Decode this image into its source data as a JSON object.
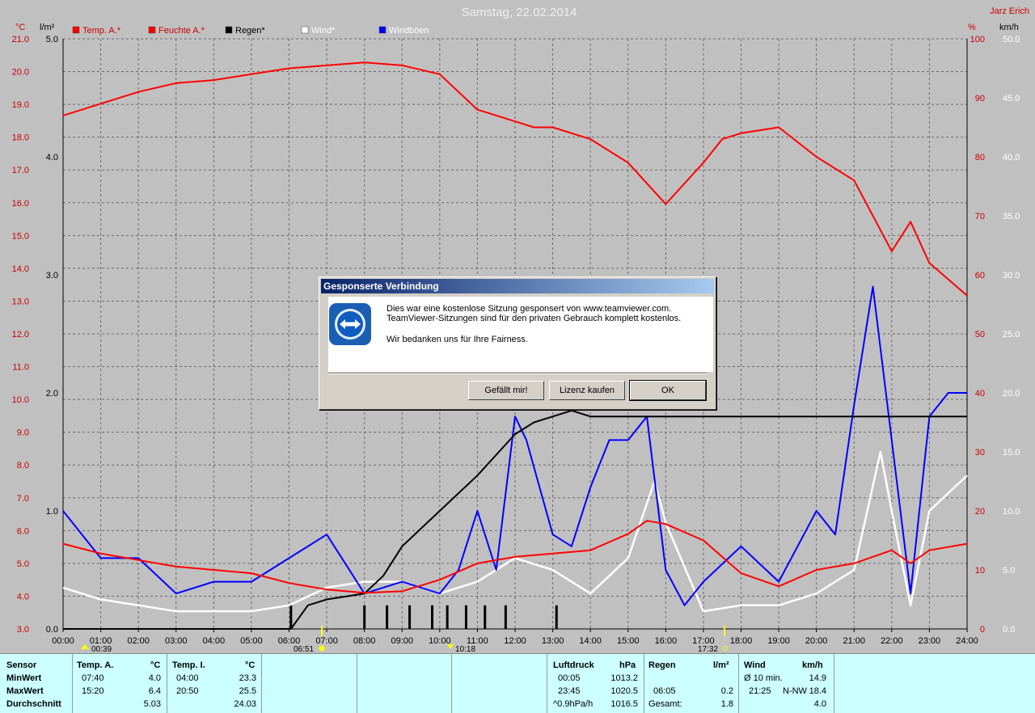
{
  "title": "Samstag, 22.02.2014",
  "author": "Jarz Erich",
  "axis_units": {
    "temp": "°C",
    "rain": "l/m²",
    "percent": "%",
    "wind": "km/h"
  },
  "legend": [
    {
      "label": "Temp. A.*",
      "color": "#ff0000"
    },
    {
      "label": "Feuchte A.*",
      "color": "#ff0000"
    },
    {
      "label": "Regen*",
      "color": "#000000"
    },
    {
      "label": "Wind*",
      "color": "#ffffff"
    },
    {
      "label": "Windböen",
      "color": "#0000ff"
    }
  ],
  "markers": {
    "t1": "00:39",
    "sunrise": "06:51",
    "t2": "10:18",
    "sunset": "17:32"
  },
  "chart_data": {
    "type": "line",
    "x_label_ticks": [
      "00:00",
      "01:00",
      "02:00",
      "03:00",
      "04:00",
      "05:00",
      "06:00",
      "07:00",
      "08:00",
      "09:00",
      "10:00",
      "11:00",
      "12:00",
      "13:00",
      "14:00",
      "15:00",
      "16:00",
      "17:00",
      "18:00",
      "19:00",
      "20:00",
      "21:00",
      "22:00",
      "23:00",
      "24:00"
    ],
    "xlim": [
      0,
      24
    ],
    "axes": {
      "temp": {
        "unit": "°C",
        "range": [
          3.0,
          21.0
        ],
        "ticks": [
          "21.0",
          "20.0",
          "19.0",
          "18.0",
          "17.0",
          "16.0",
          "15.0",
          "14.0",
          "13.0",
          "12.0",
          "11.0",
          "10.0",
          "9.0",
          "8.0",
          "7.0",
          "6.0",
          "5.0",
          "4.0",
          "3.0"
        ]
      },
      "rain": {
        "unit": "l/m²",
        "range": [
          0.0,
          5.0
        ],
        "ticks": [
          "5.0",
          "4.0",
          "3.0",
          "2.0",
          "1.0",
          "0.0"
        ]
      },
      "humidity": {
        "unit": "%",
        "range": [
          0,
          100
        ],
        "ticks": [
          "100",
          "90",
          "80",
          "70",
          "60",
          "50",
          "40",
          "30",
          "20",
          "10",
          "0"
        ]
      },
      "wind": {
        "unit": "km/h",
        "range": [
          0.0,
          50.0
        ],
        "ticks": [
          "50.0",
          "45.0",
          "40.0",
          "35.0",
          "30.0",
          "25.0",
          "20.0",
          "15.0",
          "10.0",
          "5.0",
          "0.0"
        ]
      }
    },
    "grid": true,
    "series": [
      {
        "name": "Temp. A.*",
        "axis": "temp",
        "color": "#ff0000",
        "x": [
          0,
          1,
          2,
          3,
          4,
          5,
          6,
          7,
          8,
          9,
          10,
          11,
          12,
          13,
          14,
          15,
          15.5,
          16,
          17,
          18,
          19,
          20,
          21,
          22,
          22.5,
          23,
          24
        ],
        "y": [
          5.6,
          5.3,
          5.1,
          4.9,
          4.8,
          4.7,
          4.4,
          4.2,
          4.1,
          4.15,
          4.5,
          5.0,
          5.2,
          5.3,
          5.4,
          5.9,
          6.3,
          6.2,
          5.7,
          4.7,
          4.3,
          4.8,
          5.0,
          5.4,
          5.0,
          5.4,
          5.6
        ]
      },
      {
        "name": "Feuchte A.*",
        "axis": "humidity",
        "color": "#ff0000",
        "x": [
          0,
          1,
          2,
          3,
          4,
          5,
          6,
          7,
          8,
          9,
          10,
          11,
          12,
          12.5,
          13,
          14,
          15,
          16,
          17,
          17.5,
          18,
          19,
          20,
          21,
          22,
          22.5,
          23,
          24
        ],
        "y": [
          87,
          89,
          91,
          92.5,
          93,
          94,
          95,
          95.5,
          96,
          95.5,
          94,
          88,
          86,
          85,
          85,
          83,
          79,
          72,
          79,
          83,
          84,
          85,
          80,
          76,
          64,
          69,
          62,
          56.5
        ]
      },
      {
        "name": "Regen*",
        "axis": "rain",
        "color": "#000000",
        "x": [
          0,
          6.05,
          6.5,
          7,
          8,
          8.5,
          9,
          10,
          11,
          12,
          12.5,
          13,
          13.5,
          14,
          15,
          16,
          17,
          18,
          19,
          20,
          21,
          22,
          23,
          24
        ],
        "y": [
          0,
          0,
          0.2,
          0.25,
          0.3,
          0.45,
          0.7,
          1.0,
          1.3,
          1.65,
          1.75,
          1.8,
          1.85,
          1.8,
          1.8,
          1.8,
          1.8,
          1.8,
          1.8,
          1.8,
          1.8,
          1.8,
          1.8,
          1.8
        ]
      },
      {
        "name": "Wind*",
        "axis": "wind",
        "color": "#ffffff",
        "x": [
          0,
          1,
          2,
          3,
          4,
          5,
          6,
          7,
          8,
          9,
          10,
          11,
          12,
          13,
          14,
          15,
          15.7,
          16,
          17,
          18,
          19,
          20,
          21,
          21.7,
          22,
          22.5,
          23,
          24
        ],
        "y": [
          3.5,
          2.5,
          2,
          1.5,
          1.5,
          1.5,
          2,
          3.5,
          4,
          4,
          3,
          4,
          6,
          5,
          3,
          6,
          12.5,
          9,
          1.5,
          2,
          2,
          3,
          5,
          15,
          10,
          2,
          10,
          13
        ]
      },
      {
        "name": "Windböen",
        "axis": "wind",
        "color": "#0000ff",
        "x": [
          0,
          1,
          2,
          3,
          4,
          5,
          6,
          7,
          8,
          9,
          10,
          10.5,
          11,
          11.5,
          12,
          12.3,
          13,
          13.5,
          14,
          14.5,
          15,
          15.5,
          16,
          16.5,
          17,
          18,
          19,
          20,
          20.5,
          21,
          21.5,
          22,
          22.5,
          23,
          23.5,
          24
        ],
        "y": [
          10,
          6,
          6,
          3,
          4,
          4,
          6,
          8,
          3,
          4,
          3,
          5,
          10,
          5,
          18,
          16,
          8,
          7,
          12,
          16,
          16,
          18,
          5,
          2,
          4,
          7,
          4,
          10,
          8,
          19,
          29,
          16,
          3,
          18,
          20,
          20
        ]
      }
    ],
    "rain_bars": [
      {
        "x": 6.05,
        "v": 0.2
      },
      {
        "x": 8.0,
        "v": 0.2
      },
      {
        "x": 8.6,
        "v": 0.2
      },
      {
        "x": 9.2,
        "v": 0.2
      },
      {
        "x": 9.8,
        "v": 0.2
      },
      {
        "x": 10.2,
        "v": 0.2
      },
      {
        "x": 10.7,
        "v": 0.2
      },
      {
        "x": 11.2,
        "v": 0.2
      },
      {
        "x": 11.75,
        "v": 0.2
      },
      {
        "x": 13.1,
        "v": 0.2
      }
    ]
  },
  "dialog": {
    "title": "Gesponserte Verbindung",
    "line1": "Dies war eine kostenlose Sitzung gesponsert von www.teamviewer.com.",
    "line2": "TeamViewer-Sitzungen sind für den privaten Gebrauch komplett kostenlos.",
    "line3": "Wir bedanken uns für Ihre Fairness.",
    "btn_like": "Gefällt mir!",
    "btn_license": "Lizenz kaufen",
    "btn_ok": "OK"
  },
  "stats": {
    "sensor": {
      "h": "Sensor",
      "r1": "MinWert",
      "r2": "MaxWert",
      "r3": "Durchschnitt"
    },
    "temp_a": {
      "h": "Temp. A.",
      "u": "°C",
      "t1": "07:40",
      "v1": "4.0",
      "t2": "15:20",
      "v2": "6.4",
      "v3": "5.03"
    },
    "temp_i": {
      "h": "Temp. I.",
      "u": "°C",
      "t1": "04:00",
      "v1": "23.3",
      "t2": "20:50",
      "v2": "25.5",
      "v3": "24.03"
    },
    "luft": {
      "h": "Luftdruck",
      "u": "hPa",
      "t1": "00:05",
      "v1": "1013.2",
      "t2": "23:45",
      "v2": "1020.5",
      "t3": "^0.9hPa/h",
      "v3": "1016.5"
    },
    "regen": {
      "h": "Regen",
      "u": "l/m²",
      "t2": "06:05",
      "v2": "0.2",
      "t3": "Gesamt:",
      "v3": "1.8"
    },
    "wind": {
      "h": "Wind",
      "u": "km/h",
      "t1": "Ø 10 min.",
      "v1": "14.9",
      "t2": "21:25",
      "d2": "N-NW",
      "v2": "18.4",
      "v3": "4.0"
    }
  }
}
